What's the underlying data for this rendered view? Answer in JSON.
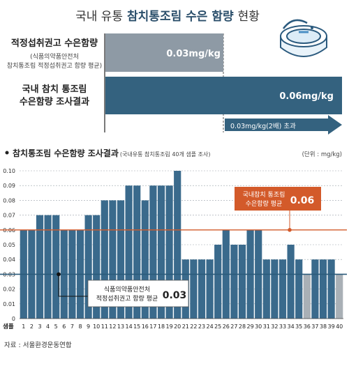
{
  "header": {
    "title_prefix": "국내 유통",
    "title_bold": "참치통조림 수은 함량",
    "title_suffix": "현황"
  },
  "comparison": {
    "row1_label": "적정섭취권고 수은함량",
    "row1_sub1": "(식품의약품안전처",
    "row1_sub2": "참치통조림 적정섭취권고 함량 평균)",
    "row1_value": "0.03mg/kg",
    "row2_label1": "국내 참치 통조림",
    "row2_label2": "수은함량 조사결과",
    "row2_value": "0.06mg/kg",
    "arrow_text": "0.03mg/kg(2배) 초과",
    "row1_color": "#8e9aa5",
    "row2_color": "#34627f"
  },
  "section": {
    "title_bold": "참치통조림 수은함량 조사결과",
    "title_sub": "(국내유통 참치통조림 40개 샘플 조사)",
    "unit": "(단위 : mg/kg)"
  },
  "source": "자료 : 서울환경운동연합",
  "chart_data": {
    "type": "bar",
    "xlabel": "샘플",
    "ylim": [
      0,
      0.1
    ],
    "y_ticks": [
      "0.10",
      "0.09",
      "0.08",
      "0.07",
      "0.06",
      "0.05",
      "0.04",
      "0.03",
      "0.02",
      "0.01",
      "0"
    ],
    "categories": [
      "1",
      "2",
      "3",
      "4",
      "5",
      "6",
      "7",
      "8",
      "9",
      "10",
      "11",
      "12",
      "13",
      "14",
      "15",
      "16",
      "17",
      "18",
      "19",
      "20",
      "21",
      "22",
      "23",
      "24",
      "25",
      "26",
      "27",
      "28",
      "29",
      "30",
      "31",
      "32",
      "33",
      "34",
      "35",
      "36",
      "37",
      "38",
      "39",
      "40"
    ],
    "values": [
      0.06,
      0.06,
      0.07,
      0.07,
      0.07,
      0.06,
      0.06,
      0.06,
      0.07,
      0.07,
      0.08,
      0.08,
      0.08,
      0.09,
      0.09,
      0.08,
      0.09,
      0.09,
      0.09,
      0.1,
      0.04,
      0.04,
      0.04,
      0.04,
      0.05,
      0.06,
      0.05,
      0.05,
      0.06,
      0.06,
      0.04,
      0.04,
      0.04,
      0.05,
      0.04,
      0.03,
      0.04,
      0.04,
      0.04,
      0.03
    ],
    "bar_color": "#3a6a8c",
    "bar_color_low": "#a9b0b6",
    "grid": true,
    "reference_lines": [
      {
        "value": 0.06,
        "label1": "국내참치 통조림",
        "label2": "수은함량 평균",
        "display": "0.06",
        "color": "#d35a2a"
      },
      {
        "value": 0.03,
        "label1": "식품의약품안전처",
        "label2": "적정섭취권고 함량 평균",
        "display": "0.03",
        "color": "#2a5a7a"
      }
    ]
  }
}
